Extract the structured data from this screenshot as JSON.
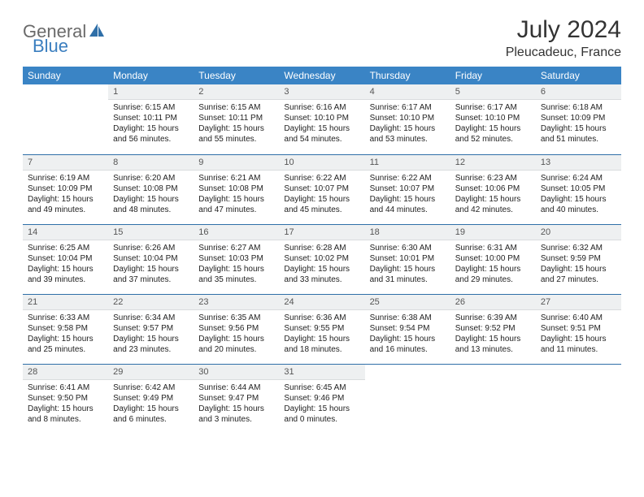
{
  "logo": {
    "part1": "General",
    "part2": "Blue"
  },
  "title": "July 2024",
  "location": "Pleucadeuc, France",
  "colors": {
    "header_bg": "#3a84c5",
    "header_text": "#ffffff",
    "daynum_bg": "#eef0f1",
    "week_divider": "#2f6fa8",
    "logo_gray": "#6a6a6a",
    "logo_blue": "#3a7ebf",
    "body_bg": "#ffffff"
  },
  "day_headers": [
    "Sunday",
    "Monday",
    "Tuesday",
    "Wednesday",
    "Thursday",
    "Friday",
    "Saturday"
  ],
  "weeks": [
    [
      {
        "empty": true
      },
      {
        "num": "1",
        "sunrise": "Sunrise: 6:15 AM",
        "sunset": "Sunset: 10:11 PM",
        "daylight": "Daylight: 15 hours and 56 minutes."
      },
      {
        "num": "2",
        "sunrise": "Sunrise: 6:15 AM",
        "sunset": "Sunset: 10:11 PM",
        "daylight": "Daylight: 15 hours and 55 minutes."
      },
      {
        "num": "3",
        "sunrise": "Sunrise: 6:16 AM",
        "sunset": "Sunset: 10:10 PM",
        "daylight": "Daylight: 15 hours and 54 minutes."
      },
      {
        "num": "4",
        "sunrise": "Sunrise: 6:17 AM",
        "sunset": "Sunset: 10:10 PM",
        "daylight": "Daylight: 15 hours and 53 minutes."
      },
      {
        "num": "5",
        "sunrise": "Sunrise: 6:17 AM",
        "sunset": "Sunset: 10:10 PM",
        "daylight": "Daylight: 15 hours and 52 minutes."
      },
      {
        "num": "6",
        "sunrise": "Sunrise: 6:18 AM",
        "sunset": "Sunset: 10:09 PM",
        "daylight": "Daylight: 15 hours and 51 minutes."
      }
    ],
    [
      {
        "num": "7",
        "sunrise": "Sunrise: 6:19 AM",
        "sunset": "Sunset: 10:09 PM",
        "daylight": "Daylight: 15 hours and 49 minutes."
      },
      {
        "num": "8",
        "sunrise": "Sunrise: 6:20 AM",
        "sunset": "Sunset: 10:08 PM",
        "daylight": "Daylight: 15 hours and 48 minutes."
      },
      {
        "num": "9",
        "sunrise": "Sunrise: 6:21 AM",
        "sunset": "Sunset: 10:08 PM",
        "daylight": "Daylight: 15 hours and 47 minutes."
      },
      {
        "num": "10",
        "sunrise": "Sunrise: 6:22 AM",
        "sunset": "Sunset: 10:07 PM",
        "daylight": "Daylight: 15 hours and 45 minutes."
      },
      {
        "num": "11",
        "sunrise": "Sunrise: 6:22 AM",
        "sunset": "Sunset: 10:07 PM",
        "daylight": "Daylight: 15 hours and 44 minutes."
      },
      {
        "num": "12",
        "sunrise": "Sunrise: 6:23 AM",
        "sunset": "Sunset: 10:06 PM",
        "daylight": "Daylight: 15 hours and 42 minutes."
      },
      {
        "num": "13",
        "sunrise": "Sunrise: 6:24 AM",
        "sunset": "Sunset: 10:05 PM",
        "daylight": "Daylight: 15 hours and 40 minutes."
      }
    ],
    [
      {
        "num": "14",
        "sunrise": "Sunrise: 6:25 AM",
        "sunset": "Sunset: 10:04 PM",
        "daylight": "Daylight: 15 hours and 39 minutes."
      },
      {
        "num": "15",
        "sunrise": "Sunrise: 6:26 AM",
        "sunset": "Sunset: 10:04 PM",
        "daylight": "Daylight: 15 hours and 37 minutes."
      },
      {
        "num": "16",
        "sunrise": "Sunrise: 6:27 AM",
        "sunset": "Sunset: 10:03 PM",
        "daylight": "Daylight: 15 hours and 35 minutes."
      },
      {
        "num": "17",
        "sunrise": "Sunrise: 6:28 AM",
        "sunset": "Sunset: 10:02 PM",
        "daylight": "Daylight: 15 hours and 33 minutes."
      },
      {
        "num": "18",
        "sunrise": "Sunrise: 6:30 AM",
        "sunset": "Sunset: 10:01 PM",
        "daylight": "Daylight: 15 hours and 31 minutes."
      },
      {
        "num": "19",
        "sunrise": "Sunrise: 6:31 AM",
        "sunset": "Sunset: 10:00 PM",
        "daylight": "Daylight: 15 hours and 29 minutes."
      },
      {
        "num": "20",
        "sunrise": "Sunrise: 6:32 AM",
        "sunset": "Sunset: 9:59 PM",
        "daylight": "Daylight: 15 hours and 27 minutes."
      }
    ],
    [
      {
        "num": "21",
        "sunrise": "Sunrise: 6:33 AM",
        "sunset": "Sunset: 9:58 PM",
        "daylight": "Daylight: 15 hours and 25 minutes."
      },
      {
        "num": "22",
        "sunrise": "Sunrise: 6:34 AM",
        "sunset": "Sunset: 9:57 PM",
        "daylight": "Daylight: 15 hours and 23 minutes."
      },
      {
        "num": "23",
        "sunrise": "Sunrise: 6:35 AM",
        "sunset": "Sunset: 9:56 PM",
        "daylight": "Daylight: 15 hours and 20 minutes."
      },
      {
        "num": "24",
        "sunrise": "Sunrise: 6:36 AM",
        "sunset": "Sunset: 9:55 PM",
        "daylight": "Daylight: 15 hours and 18 minutes."
      },
      {
        "num": "25",
        "sunrise": "Sunrise: 6:38 AM",
        "sunset": "Sunset: 9:54 PM",
        "daylight": "Daylight: 15 hours and 16 minutes."
      },
      {
        "num": "26",
        "sunrise": "Sunrise: 6:39 AM",
        "sunset": "Sunset: 9:52 PM",
        "daylight": "Daylight: 15 hours and 13 minutes."
      },
      {
        "num": "27",
        "sunrise": "Sunrise: 6:40 AM",
        "sunset": "Sunset: 9:51 PM",
        "daylight": "Daylight: 15 hours and 11 minutes."
      }
    ],
    [
      {
        "num": "28",
        "sunrise": "Sunrise: 6:41 AM",
        "sunset": "Sunset: 9:50 PM",
        "daylight": "Daylight: 15 hours and 8 minutes."
      },
      {
        "num": "29",
        "sunrise": "Sunrise: 6:42 AM",
        "sunset": "Sunset: 9:49 PM",
        "daylight": "Daylight: 15 hours and 6 minutes."
      },
      {
        "num": "30",
        "sunrise": "Sunrise: 6:44 AM",
        "sunset": "Sunset: 9:47 PM",
        "daylight": "Daylight: 15 hours and 3 minutes."
      },
      {
        "num": "31",
        "sunrise": "Sunrise: 6:45 AM",
        "sunset": "Sunset: 9:46 PM",
        "daylight": "Daylight: 15 hours and 0 minutes."
      },
      {
        "empty": true
      },
      {
        "empty": true
      },
      {
        "empty": true
      }
    ]
  ]
}
